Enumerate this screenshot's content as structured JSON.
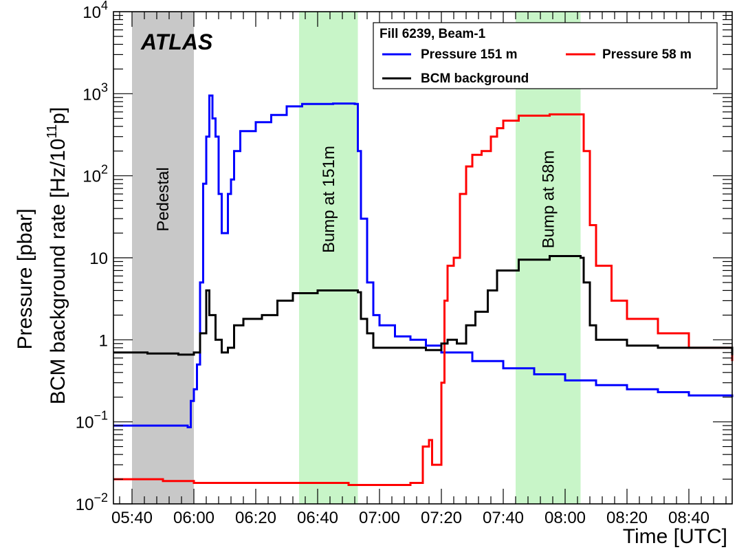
{
  "chart_data": {
    "type": "line",
    "xlabel": "Time [UTC]",
    "ylabel_line1": "Pressure [pbar]",
    "ylabel_line2_prefix": "BCM background rate [Hz/10",
    "ylabel_line2_sup": "11",
    "ylabel_line2_suffix": "p]",
    "x_range": [
      "05:34",
      "08:54"
    ],
    "y_range": [
      0.01,
      10000
    ],
    "y_scale": "log",
    "x_ticks": [
      "05:40",
      "06:00",
      "06:20",
      "06:40",
      "07:00",
      "07:20",
      "07:40",
      "08:00",
      "08:20",
      "08:40"
    ],
    "y_ticks": [
      {
        "value": 0.01,
        "base": "10",
        "exp": "−2",
        "plain": ""
      },
      {
        "value": 0.1,
        "base": "10",
        "exp": "−1",
        "plain": ""
      },
      {
        "value": 1,
        "base": "",
        "exp": "",
        "plain": "1"
      },
      {
        "value": 10,
        "base": "",
        "exp": "",
        "plain": "10"
      },
      {
        "value": 100,
        "base": "10",
        "exp": "2",
        "plain": ""
      },
      {
        "value": 1000,
        "base": "10",
        "exp": "3",
        "plain": ""
      },
      {
        "value": 10000,
        "base": "10",
        "exp": "4",
        "plain": ""
      }
    ],
    "atlas_label": "ATLAS",
    "legend": {
      "title": "Fill 6239, Beam-1",
      "placement": "top-right"
    },
    "bands": [
      {
        "label": "Pedestal",
        "start": "05:40",
        "end": "06:00",
        "color": "#c8c8c8"
      },
      {
        "label": "Bump at 151m",
        "start": "06:34",
        "end": "06:53",
        "color": "#c8f5c8"
      },
      {
        "label": "Bump at 58m",
        "start": "07:44",
        "end": "08:05",
        "color": "#c8f5c8"
      }
    ],
    "series": [
      {
        "name": "Pressure 151 m",
        "color": "#0000ff",
        "points": [
          [
            "05:34",
            0.09
          ],
          [
            "05:45",
            0.09
          ],
          [
            "05:58",
            0.086
          ],
          [
            "05:59",
            0.1
          ],
          [
            "05:59",
            0.18
          ],
          [
            "06:00",
            0.25
          ],
          [
            "06:01",
            0.5
          ],
          [
            "06:02",
            5
          ],
          [
            "06:03",
            80
          ],
          [
            "06:04",
            300
          ],
          [
            "06:05",
            950
          ],
          [
            "06:06",
            500
          ],
          [
            "06:07",
            300
          ],
          [
            "06:08",
            60
          ],
          [
            "06:09",
            20
          ],
          [
            "06:10",
            20
          ],
          [
            "06:11",
            60
          ],
          [
            "06:12",
            90
          ],
          [
            "06:13",
            200
          ],
          [
            "06:15",
            350
          ],
          [
            "06:20",
            450
          ],
          [
            "06:25",
            550
          ],
          [
            "06:30",
            700
          ],
          [
            "06:35",
            750
          ],
          [
            "06:45",
            760
          ],
          [
            "06:52",
            750
          ],
          [
            "06:53",
            200
          ],
          [
            "06:54",
            30
          ],
          [
            "06:56",
            5
          ],
          [
            "06:58",
            2
          ],
          [
            "07:00",
            1.5
          ],
          [
            "07:05",
            1.1
          ],
          [
            "07:10",
            1.0
          ],
          [
            "07:15",
            0.85
          ],
          [
            "07:20",
            0.7
          ],
          [
            "07:30",
            0.55
          ],
          [
            "07:40",
            0.45
          ],
          [
            "07:50",
            0.38
          ],
          [
            "08:00",
            0.32
          ],
          [
            "08:10",
            0.28
          ],
          [
            "08:20",
            0.25
          ],
          [
            "08:30",
            0.23
          ],
          [
            "08:40",
            0.21
          ],
          [
            "08:54",
            0.2
          ]
        ]
      },
      {
        "name": "Pressure 58 m",
        "color": "#ff0000",
        "points": [
          [
            "05:34",
            0.02
          ],
          [
            "05:50",
            0.019
          ],
          [
            "06:00",
            0.018
          ],
          [
            "06:10",
            0.018
          ],
          [
            "06:30",
            0.018
          ],
          [
            "06:50",
            0.017
          ],
          [
            "07:00",
            0.017
          ],
          [
            "07:10",
            0.018
          ],
          [
            "07:13",
            0.018
          ],
          [
            "07:14",
            0.05
          ],
          [
            "07:16",
            0.06
          ],
          [
            "07:17",
            0.03
          ],
          [
            "07:18",
            0.03
          ],
          [
            "07:19",
            0.03
          ],
          [
            "07:20",
            0.3
          ],
          [
            "07:21",
            3
          ],
          [
            "07:22",
            8
          ],
          [
            "07:24",
            10
          ],
          [
            "07:26",
            60
          ],
          [
            "07:28",
            130
          ],
          [
            "07:30",
            180
          ],
          [
            "07:33",
            200
          ],
          [
            "07:36",
            300
          ],
          [
            "07:38",
            380
          ],
          [
            "07:40",
            470
          ],
          [
            "07:45",
            540
          ],
          [
            "07:55",
            560
          ],
          [
            "08:05",
            560
          ],
          [
            "08:06",
            200
          ],
          [
            "08:08",
            25
          ],
          [
            "08:10",
            8
          ],
          [
            "08:15",
            3
          ],
          [
            "08:20",
            1.8
          ],
          [
            "08:30",
            1.2
          ],
          [
            "08:40",
            0.8
          ],
          [
            "08:54",
            0.55
          ]
        ]
      },
      {
        "name": "BCM background",
        "color": "#000000",
        "points": [
          [
            "05:34",
            0.7
          ],
          [
            "05:45",
            0.68
          ],
          [
            "05:55",
            0.66
          ],
          [
            "06:00",
            0.7
          ],
          [
            "06:02",
            1.2
          ],
          [
            "06:04",
            4
          ],
          [
            "06:05",
            2
          ],
          [
            "06:07",
            1.0
          ],
          [
            "06:09",
            0.7
          ],
          [
            "06:11",
            0.8
          ],
          [
            "06:13",
            1.5
          ],
          [
            "06:16",
            1.8
          ],
          [
            "06:22",
            2.0
          ],
          [
            "06:27",
            3.0
          ],
          [
            "06:32",
            3.7
          ],
          [
            "06:40",
            4.0
          ],
          [
            "06:50",
            4.0
          ],
          [
            "06:53",
            3.8
          ],
          [
            "06:54",
            1.8
          ],
          [
            "06:56",
            1.2
          ],
          [
            "06:58",
            0.8
          ],
          [
            "07:05",
            0.8
          ],
          [
            "07:15",
            0.75
          ],
          [
            "07:20",
            0.9
          ],
          [
            "07:22",
            1.0
          ],
          [
            "07:25",
            0.9
          ],
          [
            "07:28",
            1.5
          ],
          [
            "07:31",
            2.2
          ],
          [
            "07:35",
            4.0
          ],
          [
            "07:38",
            7.0
          ],
          [
            "07:45",
            9.5
          ],
          [
            "07:55",
            10.5
          ],
          [
            "08:05",
            10.0
          ],
          [
            "08:06",
            5
          ],
          [
            "08:08",
            1.5
          ],
          [
            "08:10",
            1.0
          ],
          [
            "08:20",
            0.85
          ],
          [
            "08:30",
            0.8
          ],
          [
            "08:40",
            0.8
          ],
          [
            "08:54",
            0.65
          ]
        ]
      }
    ]
  }
}
